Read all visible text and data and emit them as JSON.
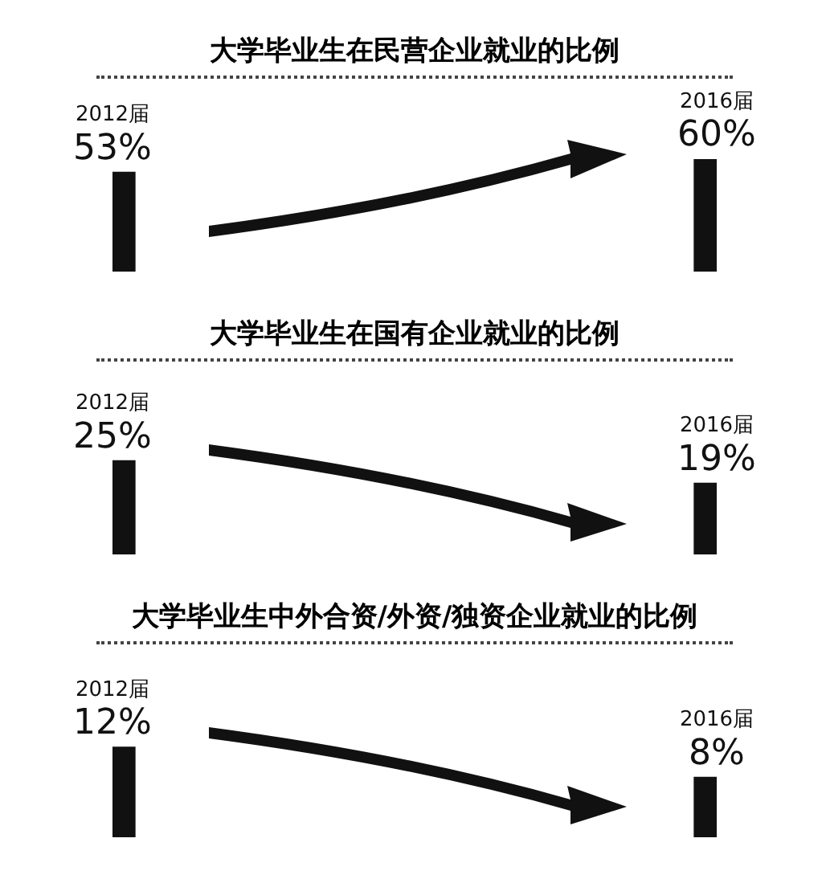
{
  "chart_data": [
    {
      "type": "bar",
      "title": "大学毕业生在民营企业就业的比例",
      "categories": [
        "2012届",
        "2016届"
      ],
      "values": [
        53,
        60
      ],
      "value_labels": [
        "53%",
        "60%"
      ],
      "color": "#111111"
    },
    {
      "type": "bar",
      "title": "大学毕业生在国有企业就业的比例",
      "categories": [
        "2012届",
        "2016届"
      ],
      "values": [
        25,
        19
      ],
      "value_labels": [
        "25%",
        "19%"
      ],
      "color": "#111111"
    },
    {
      "type": "bar",
      "title": "大学毕业生中外合资/外资/独资企业就业的比例",
      "categories": [
        "2012届",
        "2016届"
      ],
      "values": [
        12,
        8
      ],
      "value_labels": [
        "12%",
        "8%"
      ],
      "color": "#111111"
    }
  ]
}
